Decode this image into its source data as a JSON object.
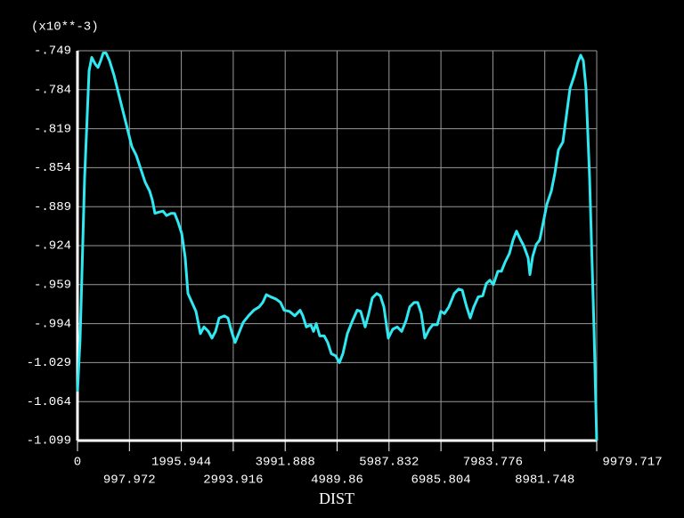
{
  "chart_data": {
    "type": "line",
    "y_multiplier": "(x10**-3)",
    "x_label": "DIST",
    "color": "#2fe8f2",
    "grid": true,
    "xlim": [
      0,
      9979.717
    ],
    "xticks": [
      0,
      997.972,
      1995.944,
      2993.916,
      3991.888,
      4989.86,
      5987.832,
      6985.804,
      7983.776,
      8981.748,
      9979.717
    ],
    "ylim": [
      -1.099,
      -0.749
    ],
    "yticks": [
      {
        "value": -1.099,
        "label": "-1.099"
      },
      {
        "value": -1.064,
        "label": "-1.064"
      },
      {
        "value": -1.029,
        "label": "-1.029"
      },
      {
        "value": -0.994,
        "label": "-.994"
      },
      {
        "value": -0.959,
        "label": "-.959"
      },
      {
        "value": -0.924,
        "label": "-.924"
      },
      {
        "value": -0.889,
        "label": "-.889"
      },
      {
        "value": -0.854,
        "label": "-.854"
      },
      {
        "value": -0.819,
        "label": "-.819"
      },
      {
        "value": -0.784,
        "label": "-.784"
      },
      {
        "value": -0.749,
        "label": "-.749"
      }
    ],
    "x": [
      0,
      51,
      137,
      223,
      274,
      342,
      394,
      445,
      496,
      548,
      616,
      702,
      787,
      873,
      959,
      1044,
      1130,
      1215,
      1301,
      1387,
      1438,
      1489,
      1558,
      1643,
      1712,
      1797,
      1866,
      1934,
      2003,
      2071,
      2123,
      2191,
      2277,
      2362,
      2431,
      2516,
      2585,
      2653,
      2722,
      2824,
      2893,
      2961,
      3030,
      3098,
      3184,
      3287,
      3389,
      3492,
      3561,
      3629,
      3715,
      3817,
      3903,
      3971,
      4074,
      4177,
      4279,
      4331,
      4399,
      4485,
      4536,
      4588,
      4656,
      4742,
      4810,
      4879,
      4964,
      5033,
      5101,
      5187,
      5289,
      5375,
      5443,
      5529,
      5598,
      5666,
      5752,
      5820,
      5889,
      5974,
      6060,
      6145,
      6231,
      6317,
      6385,
      6471,
      6539,
      6608,
      6676,
      6762,
      6830,
      6916,
      6984,
      7053,
      7138,
      7241,
      7326,
      7395,
      7480,
      7549,
      7617,
      7703,
      7789,
      7857,
      7926,
      7994,
      8080,
      8148,
      8217,
      8302,
      8371,
      8439,
      8508,
      8576,
      8662,
      8696,
      8747,
      8816,
      8884,
      8953,
      9021,
      9107,
      9175,
      9244,
      9329,
      9398,
      9466,
      9552,
      9620,
      9672,
      9723,
      9774,
      9843,
      9928,
      9979
    ],
    "values": [
      -1.055,
      -1.007,
      -0.863,
      -0.767,
      -0.755,
      -0.761,
      -0.764,
      -0.758,
      -0.751,
      -0.751,
      -0.758,
      -0.771,
      -0.787,
      -0.803,
      -0.819,
      -0.835,
      -0.843,
      -0.855,
      -0.867,
      -0.875,
      -0.883,
      -0.895,
      -0.894,
      -0.893,
      -0.897,
      -0.895,
      -0.895,
      -0.903,
      -0.913,
      -0.935,
      -0.967,
      -0.974,
      -0.983,
      -1.003,
      -0.997,
      -1.001,
      -1.007,
      -1.001,
      -0.989,
      -0.987,
      -0.989,
      -1.001,
      -1.011,
      -1.003,
      -0.993,
      -0.987,
      -0.982,
      -0.979,
      -0.975,
      -0.968,
      -0.97,
      -0.972,
      -0.975,
      -0.982,
      -0.983,
      -0.987,
      -0.982,
      -0.987,
      -0.997,
      -0.995,
      -1.001,
      -0.994,
      -1.005,
      -1.005,
      -1.011,
      -1.021,
      -1.023,
      -1.029,
      -1.021,
      -1.003,
      -0.991,
      -0.982,
      -0.983,
      -0.997,
      -0.985,
      -0.971,
      -0.967,
      -0.969,
      -0.979,
      -1.007,
      -0.999,
      -0.997,
      -1.001,
      -0.991,
      -0.979,
      -0.975,
      -0.975,
      -0.985,
      -1.007,
      -0.999,
      -0.995,
      -0.995,
      -0.983,
      -0.985,
      -0.979,
      -0.967,
      -0.963,
      -0.964,
      -0.979,
      -0.989,
      -0.979,
      -0.97,
      -0.969,
      -0.958,
      -0.955,
      -0.959,
      -0.947,
      -0.947,
      -0.939,
      -0.931,
      -0.919,
      -0.911,
      -0.918,
      -0.924,
      -0.935,
      -0.95,
      -0.934,
      -0.923,
      -0.919,
      -0.903,
      -0.887,
      -0.875,
      -0.859,
      -0.838,
      -0.831,
      -0.807,
      -0.783,
      -0.771,
      -0.759,
      -0.753,
      -0.758,
      -0.783,
      -0.863,
      -0.999,
      -1.099
    ]
  }
}
